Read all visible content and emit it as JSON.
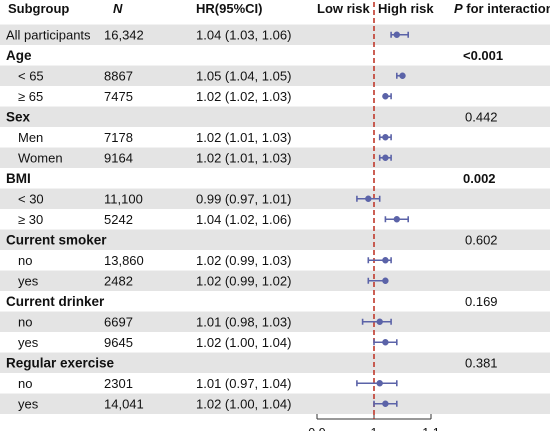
{
  "chart_data": {
    "type": "forest",
    "headers": {
      "subgroup": "Subgroup",
      "n": "N",
      "hr": "HR(95%CI)",
      "low_risk": "Low risk",
      "high_risk": "High risk",
      "p_prefix": "P",
      "p_suffix": " for interaction"
    },
    "rows": [
      {
        "label": "All participants",
        "n": "16,342",
        "hr_text": "1.04 (1.03, 1.06)",
        "hr": 1.04,
        "lo": 1.03,
        "hi": 1.06,
        "p": "",
        "heading": false
      },
      {
        "label": "Age",
        "n": "",
        "hr_text": "",
        "hr": null,
        "lo": null,
        "hi": null,
        "p": "<0.001",
        "heading": true
      },
      {
        "label": "< 65",
        "n": "8867",
        "hr_text": "1.05 (1.04, 1.05)",
        "hr": 1.05,
        "lo": 1.04,
        "hi": 1.05,
        "p": "",
        "heading": false
      },
      {
        "label": "≥ 65",
        "n": "7475",
        "hr_text": "1.02 (1.02, 1.03)",
        "hr": 1.02,
        "lo": 1.02,
        "hi": 1.03,
        "p": "",
        "heading": false
      },
      {
        "label": "Sex",
        "n": "",
        "hr_text": "",
        "hr": null,
        "lo": null,
        "hi": null,
        "p": "0.442",
        "heading": true
      },
      {
        "label": "Men",
        "n": "7178",
        "hr_text": "1.02 (1.01, 1.03)",
        "hr": 1.02,
        "lo": 1.01,
        "hi": 1.03,
        "p": "",
        "heading": false
      },
      {
        "label": "Women",
        "n": "9164",
        "hr_text": "1.02 (1.01, 1.03)",
        "hr": 1.02,
        "lo": 1.01,
        "hi": 1.03,
        "p": "",
        "heading": false
      },
      {
        "label": "BMI",
        "n": "",
        "hr_text": "",
        "hr": null,
        "lo": null,
        "hi": null,
        "p": "0.002",
        "heading": true
      },
      {
        "label": "< 30",
        "n": "11,100",
        "hr_text": "0.99 (0.97, 1.01)",
        "hr": 0.99,
        "lo": 0.97,
        "hi": 1.01,
        "p": "",
        "heading": false
      },
      {
        "label": "≥ 30",
        "n": "5242",
        "hr_text": "1.04 (1.02, 1.06)",
        "hr": 1.04,
        "lo": 1.02,
        "hi": 1.06,
        "p": "",
        "heading": false
      },
      {
        "label": "Current smoker",
        "n": "",
        "hr_text": "",
        "hr": null,
        "lo": null,
        "hi": null,
        "p": "0.602",
        "heading": true
      },
      {
        "label": "no",
        "n": "13,860",
        "hr_text": "1.02 (0.99, 1.03)",
        "hr": 1.02,
        "lo": 0.99,
        "hi": 1.03,
        "p": "",
        "heading": false
      },
      {
        "label": "yes",
        "n": "2482",
        "hr_text": "1.02 (0.99, 1.02)",
        "hr": 1.02,
        "lo": 0.99,
        "hi": 1.02,
        "p": "",
        "heading": false
      },
      {
        "label": "Current drinker",
        "n": "",
        "hr_text": "",
        "hr": null,
        "lo": null,
        "hi": null,
        "p": "0.169",
        "heading": true
      },
      {
        "label": "no",
        "n": "6697",
        "hr_text": "1.01 (0.98, 1.03)",
        "hr": 1.01,
        "lo": 0.98,
        "hi": 1.03,
        "p": "",
        "heading": false
      },
      {
        "label": "yes",
        "n": "9645",
        "hr_text": "1.02 (1.00, 1.04)",
        "hr": 1.02,
        "lo": 1.0,
        "hi": 1.04,
        "p": "",
        "heading": false
      },
      {
        "label": "Regular exercise",
        "n": "",
        "hr_text": "",
        "hr": null,
        "lo": null,
        "hi": null,
        "p": "0.381",
        "heading": true
      },
      {
        "label": "no",
        "n": "2301",
        "hr_text": "1.01 (0.97, 1.04)",
        "hr": 1.01,
        "lo": 0.97,
        "hi": 1.04,
        "p": "",
        "heading": false
      },
      {
        "label": "yes",
        "n": "14,041",
        "hr_text": "1.02 (1.00, 1.04)",
        "hr": 1.02,
        "lo": 1.0,
        "hi": 1.04,
        "p": "",
        "heading": false
      }
    ],
    "x_axis": {
      "min": 0.9,
      "max": 1.1,
      "ticks": [
        0.9,
        1,
        1.1
      ],
      "tick_labels": [
        "0.9",
        "1",
        "1.1"
      ],
      "reference": 1
    },
    "colors": {
      "marker": "#5b63a8",
      "reference_line": "#c0392b",
      "stripe": "#e4e4e4",
      "text": "#111111"
    }
  }
}
